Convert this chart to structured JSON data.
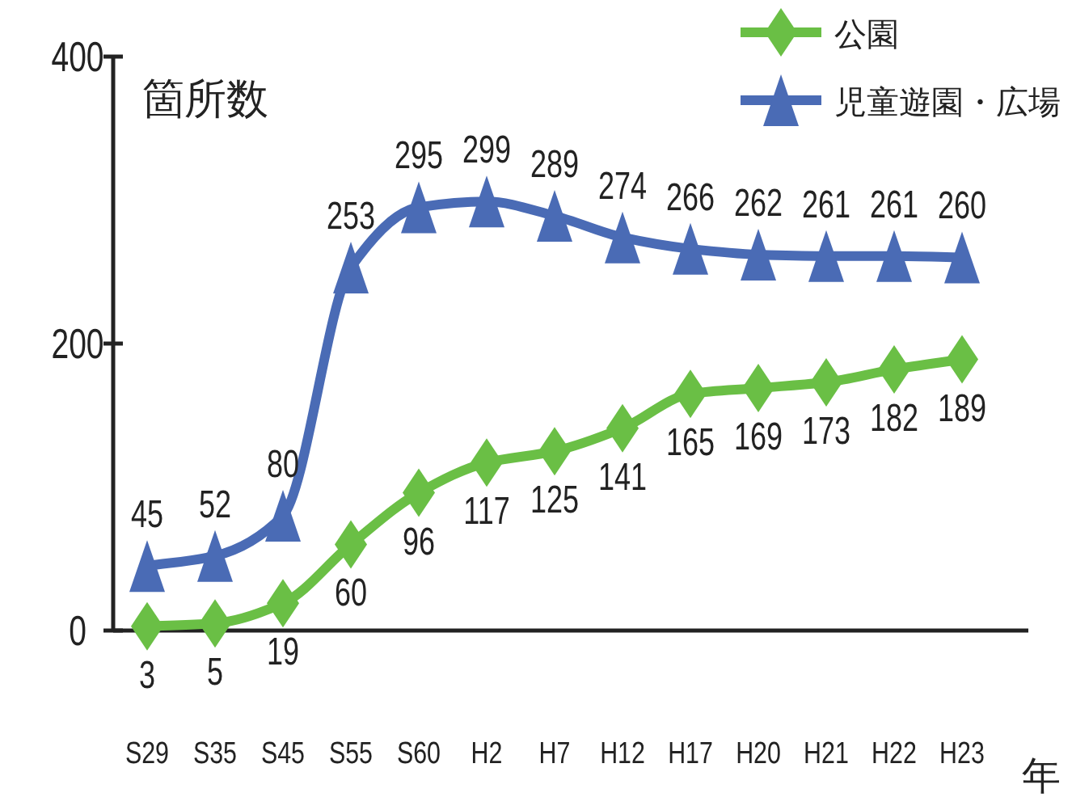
{
  "chart_data": {
    "type": "line",
    "ylabel": "箇所数",
    "xlabel": "年",
    "categories": [
      "S29",
      "S35",
      "S45",
      "S55",
      "S60",
      "H2",
      "H7",
      "H12",
      "H17",
      "H20",
      "H21",
      "H22",
      "H23"
    ],
    "series": [
      {
        "name": "公園",
        "color": "#6abf45",
        "marker": "diamond",
        "values": [
          3,
          5,
          19,
          60,
          96,
          117,
          125,
          141,
          165,
          169,
          173,
          182,
          189
        ]
      },
      {
        "name": "児童遊園・広場",
        "color": "#4a6bb5",
        "marker": "triangle",
        "values": [
          45,
          52,
          80,
          253,
          295,
          299,
          289,
          274,
          266,
          262,
          261,
          261,
          260
        ]
      }
    ],
    "ylim": [
      0,
      400
    ],
    "yticks": [
      0,
      200,
      400
    ],
    "data_labels": true,
    "legend": "top right"
  }
}
